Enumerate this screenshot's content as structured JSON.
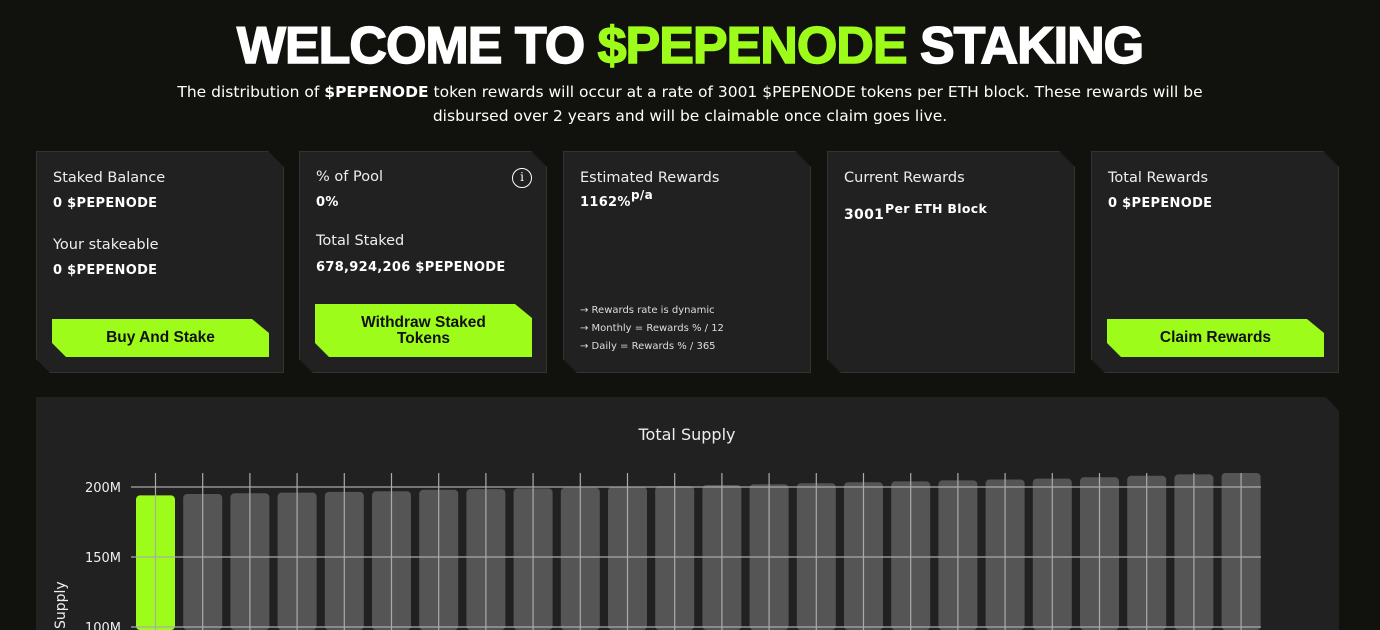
{
  "header": {
    "title_pre": "WELCOME TO ",
    "title_accent": "$PEPENODE",
    "title_post": " STAKING",
    "sub_1": "The distribution of ",
    "sub_bold": "$PEPENODE",
    "sub_2": " token rewards will occur at a rate of 3001 $PEPENODE tokens per ETH block. These rewards will be disbursed over 2 years and will be claimable once claim goes live."
  },
  "cards": {
    "balance": {
      "label": "Staked Balance",
      "value": "0 $PEPENODE",
      "label2": "Your stakeable",
      "value2": "0 $PEPENODE",
      "button": "Buy And Stake"
    },
    "pool": {
      "label": "% of Pool",
      "value": "0%",
      "label2": "Total Staked",
      "value2": "678,924,206 $PEPENODE",
      "button": "Withdraw Staked Tokens",
      "info_icon": "info-icon"
    },
    "estimated": {
      "label": "Estimated Rewards",
      "value": "1162%",
      "unit": "p/a",
      "notes": [
        "→ Rewards rate is dynamic",
        "→ Monthly = Rewards % / 12",
        "→ Daily = Rewards % / 365"
      ]
    },
    "current": {
      "label": "Current Rewards",
      "value": "3001",
      "unit": "Per ETH Block"
    },
    "total": {
      "label": "Total Rewards",
      "value": "0 $PEPENODE",
      "button": "Claim Rewards"
    }
  },
  "colors": {
    "accent": "#9efc1a",
    "bar": "#555555",
    "background": "#11110d",
    "card": "#212121"
  },
  "chart_data": {
    "type": "bar",
    "title": "Total Supply",
    "ylabel": "Supply",
    "ylim": [
      100,
      215
    ],
    "yticks": [
      "200M",
      "150M",
      "100M"
    ],
    "ytick_values": [
      200,
      150,
      100
    ],
    "grid": true,
    "values": [
      194,
      195,
      195.5,
      196,
      196.5,
      197,
      198,
      198.5,
      199,
      199.5,
      200,
      200.7,
      201.4,
      202,
      202.7,
      203.4,
      204,
      204.7,
      205.4,
      206,
      207,
      208,
      209,
      210
    ],
    "highlight_index": 0
  }
}
